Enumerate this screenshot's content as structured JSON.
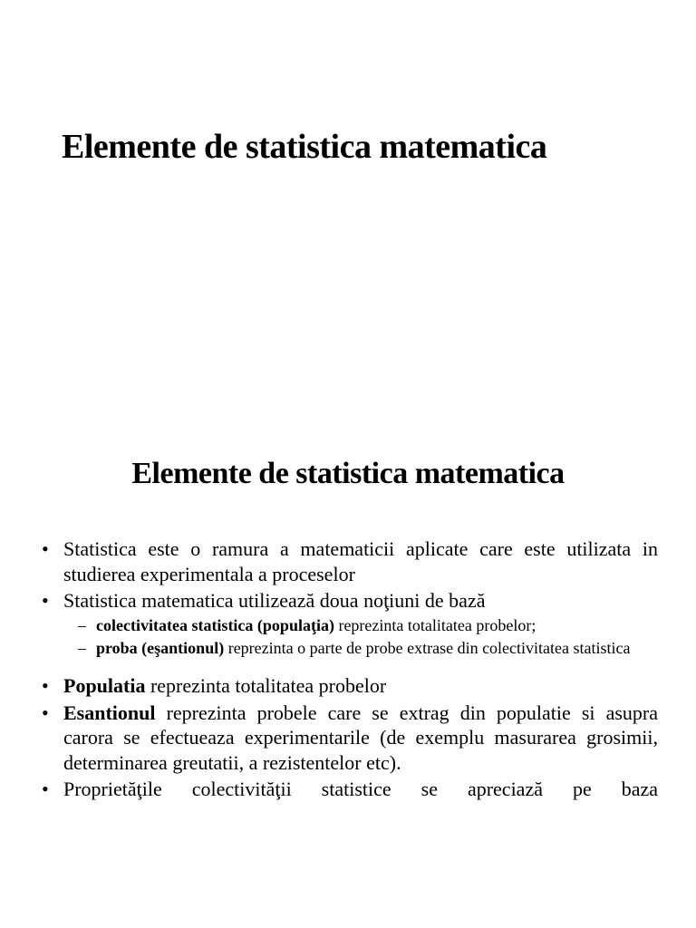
{
  "document": {
    "title_main": "Elemente de statistica matematica",
    "title_sub": "Elemente de statistica matematica",
    "typography": {
      "title_main_fontsize": 38,
      "title_sub_fontsize": 34,
      "bullet_fontsize": 22,
      "sub_bullet_fontsize": 18,
      "font_family": "Times New Roman",
      "text_color": "#000000",
      "background_color": "#ffffff"
    },
    "bullets": [
      {
        "marker": "•",
        "text": "Statistica este o ramura a matematicii aplicate care este utilizata in studierea experimentala a proceselor"
      },
      {
        "marker": "•",
        "text": "Statistica matematica utilizează doua noţiuni de bază"
      }
    ],
    "sub_bullets": [
      {
        "marker": "–",
        "bold_prefix": "colectivitatea statistica (populaţia)",
        "rest": " reprezinta totalitatea probelor;"
      },
      {
        "marker": "–",
        "bold_prefix": "proba (eşantionul)",
        "rest": " reprezinta o parte de probe extrase din colectivitatea statistica"
      }
    ],
    "bullets_2": [
      {
        "marker": "•",
        "bold_prefix": "Populatia",
        "rest": " reprezinta totalitatea probelor"
      },
      {
        "marker": "•",
        "bold_prefix": "Esantionul",
        "rest": " reprezinta probele care se extrag din populatie si asupra carora se efectueaza experimentarile (de exemplu masurarea grosimii, determinarea greutatii, a rezistentelor etc)."
      },
      {
        "marker": "•",
        "text": "Proprietăţile colectivităţii statistice se apreciază pe baza"
      }
    ]
  }
}
